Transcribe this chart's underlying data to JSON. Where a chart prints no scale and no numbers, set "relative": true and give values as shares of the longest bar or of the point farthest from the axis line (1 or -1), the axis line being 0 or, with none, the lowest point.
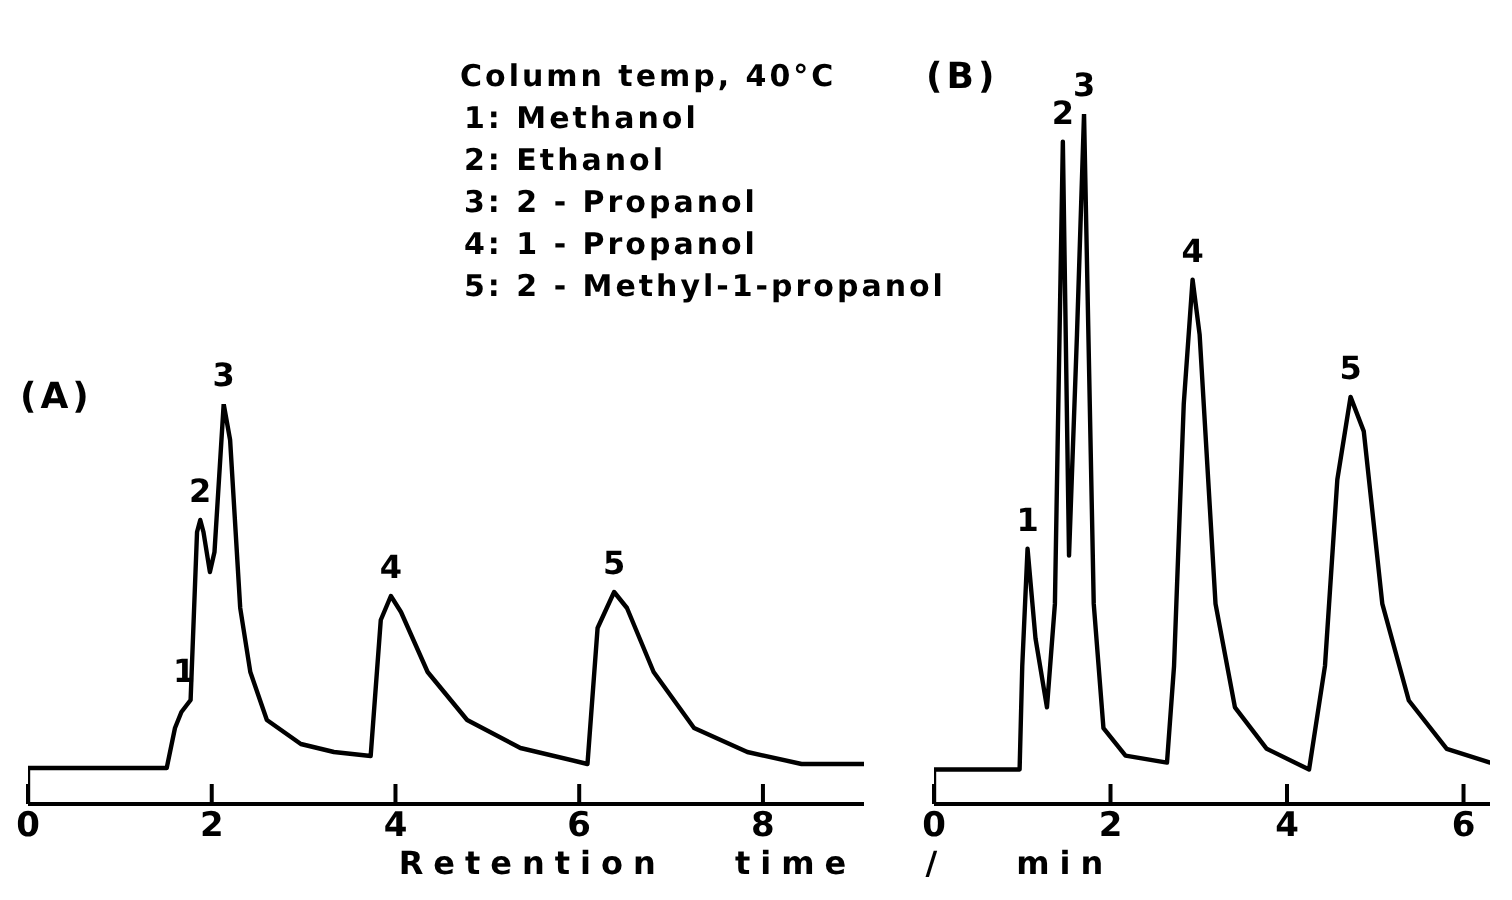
{
  "chart_data": [
    {
      "type": "line",
      "title": "(A)",
      "xlabel": "Retention time / min",
      "relative": true,
      "xlim": [
        0,
        9.1
      ],
      "xticks": [
        0,
        2,
        4,
        6,
        8
      ],
      "grid": false,
      "legend": false,
      "marker": "none",
      "series": [
        {
          "color": "#000000",
          "x": [
            0,
            0,
            1.51,
            1.6,
            1.67,
            1.77,
            1.84,
            1.875,
            1.91,
            1.98,
            2.03,
            2.13,
            2.2,
            2.31,
            2.42,
            2.6,
            2.97,
            3.33,
            3.73,
            3.84,
            3.95,
            4.06,
            4.35,
            4.78,
            5.36,
            6.09,
            6.2,
            6.38,
            6.52,
            6.81,
            7.25,
            7.83,
            8.42,
            9.1
          ],
          "values": [
            0,
            0.09,
            0.09,
            0.19,
            0.23,
            0.26,
            0.68,
            0.71,
            0.68,
            0.58,
            0.63,
            1,
            0.91,
            0.49,
            0.33,
            0.21,
            0.15,
            0.13,
            0.12,
            0.46,
            0.52,
            0.48,
            0.33,
            0.21,
            0.14,
            0.1,
            0.44,
            0.53,
            0.49,
            0.33,
            0.19,
            0.13,
            0.1,
            0.1
          ]
        }
      ],
      "annotations": [
        "Column temp, 40°C",
        "1: Methanol",
        "2: Ethanol",
        "3: 2 - Propanol",
        "4: 1 - Propanol",
        "5: 2 - Methyl-1-propanol",
        {
          "text": "1",
          "x": 1.7,
          "y": 0.26
        },
        {
          "text": "2",
          "x": 1.875,
          "y": 0.71
        },
        {
          "text": "3",
          "x": 2.13,
          "y": 1
        },
        {
          "text": "4",
          "x": 3.95,
          "y": 0.52
        },
        {
          "text": "5",
          "x": 6.38,
          "y": 0.53
        }
      ]
    },
    {
      "type": "line",
      "title": "(B)",
      "relative": true,
      "xlim": [
        0,
        6.3
      ],
      "xticks": [
        0,
        2,
        4,
        6
      ],
      "grid": false,
      "legend": false,
      "marker": "none",
      "series": [
        {
          "color": "#000000",
          "x": [
            0,
            0,
            0.97,
            1.0,
            1.06,
            1.15,
            1.28,
            1.37,
            1.46,
            1.53,
            1.62,
            1.7,
            1.81,
            1.92,
            2.17,
            2.64,
            2.72,
            2.83,
            2.93,
            3.01,
            3.19,
            3.41,
            3.77,
            4.25,
            4.43,
            4.57,
            4.72,
            4.87,
            5.08,
            5.38,
            5.81,
            6.3
          ],
          "values": [
            0,
            0.05,
            0.05,
            0.2,
            0.37,
            0.24,
            0.14,
            0.29,
            0.96,
            0.36,
            0.68,
            1,
            0.29,
            0.11,
            0.07,
            0.06,
            0.2,
            0.58,
            0.76,
            0.68,
            0.29,
            0.14,
            0.08,
            0.05,
            0.2,
            0.47,
            0.59,
            0.54,
            0.29,
            0.15,
            0.08,
            0.06
          ]
        }
      ],
      "annotations": [
        {
          "text": "1",
          "x": 1.06,
          "y": 0.37
        },
        {
          "text": "2",
          "x": 1.46,
          "y": 0.96
        },
        {
          "text": "3",
          "x": 1.7,
          "y": 1
        },
        {
          "text": "4",
          "x": 2.93,
          "y": 0.76
        },
        {
          "text": "5",
          "x": 4.72,
          "y": 0.59
        }
      ]
    }
  ]
}
